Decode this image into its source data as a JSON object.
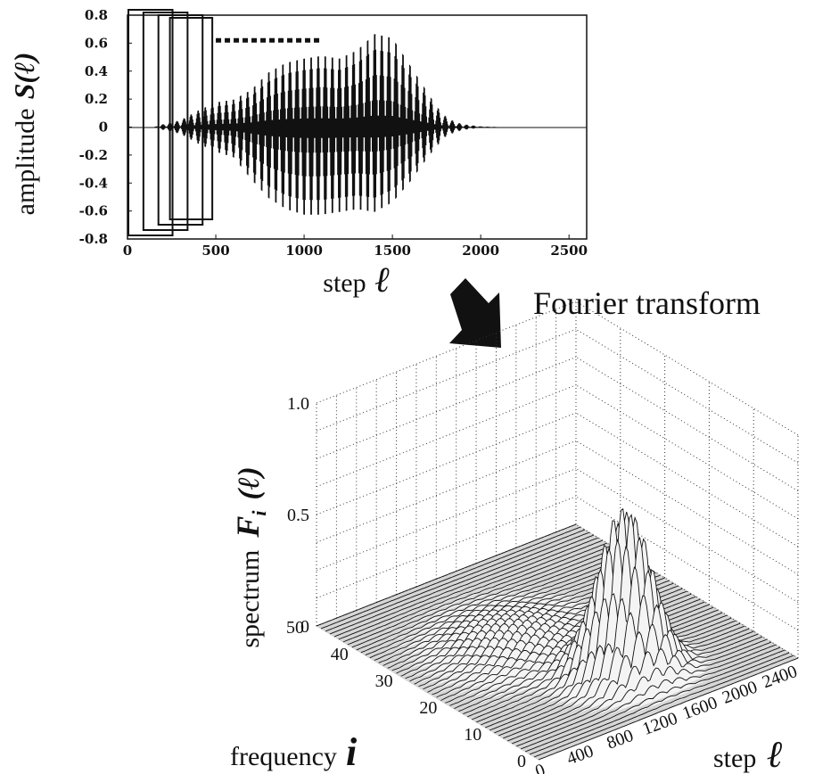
{
  "chart_data": [
    {
      "type": "line",
      "title": "",
      "xlabel": "step",
      "xlabel_symbol": "ℓ",
      "ylabel": "amplitude",
      "ylabel_symbol": "S(ℓ)",
      "xlim": [
        0,
        2600
      ],
      "ylim": [
        -0.8,
        0.8
      ],
      "x_ticks": [
        "0",
        "500",
        "1000",
        "1500",
        "2000",
        "2500"
      ],
      "y_ticks": [
        "0.8",
        "0.6",
        "0.4",
        "0.2",
        "0",
        "-0.2",
        "-0.4",
        "-0.6",
        "-0.8"
      ],
      "envelope": {
        "x": [
          0,
          100,
          150,
          200,
          300,
          400,
          500,
          600,
          700,
          800,
          900,
          1000,
          1100,
          1200,
          1300,
          1400,
          1500,
          1600,
          1700,
          1750,
          1800,
          1850,
          1900,
          2000,
          2100,
          2600
        ],
        "max": [
          0,
          0,
          0,
          0.02,
          0.05,
          0.12,
          0.18,
          0.2,
          0.27,
          0.4,
          0.47,
          0.5,
          0.52,
          0.5,
          0.56,
          0.68,
          0.65,
          0.45,
          0.25,
          0.15,
          0.08,
          0.04,
          0.02,
          0.005,
          0,
          0
        ],
        "min": [
          0,
          0,
          0,
          -0.02,
          -0.05,
          -0.12,
          -0.18,
          -0.22,
          -0.38,
          -0.52,
          -0.6,
          -0.64,
          -0.64,
          -0.62,
          -0.6,
          -0.62,
          -0.55,
          -0.4,
          -0.22,
          -0.14,
          -0.07,
          -0.04,
          -0.02,
          -0.005,
          0,
          0
        ]
      },
      "annotations": {
        "window_boxes_x": [
          [
            0,
            250
          ],
          [
            80,
            330
          ],
          [
            160,
            410
          ],
          [
            220,
            460
          ]
        ],
        "dashed_segment": {
          "x": [
            500,
            1100
          ],
          "y": 0.62
        }
      }
    },
    {
      "type": "surface",
      "title": "",
      "xlabel": "step",
      "xlabel_symbol": "ℓ",
      "ylabel": "frequency",
      "ylabel_symbol": "i",
      "zlabel": "spectrum",
      "zlabel_symbol": "F",
      "zlabel_subscript": "i",
      "zlabel_arg": "(ℓ)",
      "x_ticks": [
        "0",
        "400",
        "800",
        "1200",
        "1600",
        "2000",
        "2400"
      ],
      "y_ticks": [
        "0",
        "10",
        "20",
        "30",
        "40",
        "50"
      ],
      "z_ticks": [
        "0",
        "0.5",
        "1.0"
      ],
      "xlim": [
        0,
        2600
      ],
      "ylim": [
        0,
        50
      ],
      "zlim": [
        0,
        1.0
      ],
      "peak": {
        "step": 1400,
        "frequency": 12,
        "height": 0.75
      }
    }
  ],
  "arrow_label": "Fourier transform"
}
